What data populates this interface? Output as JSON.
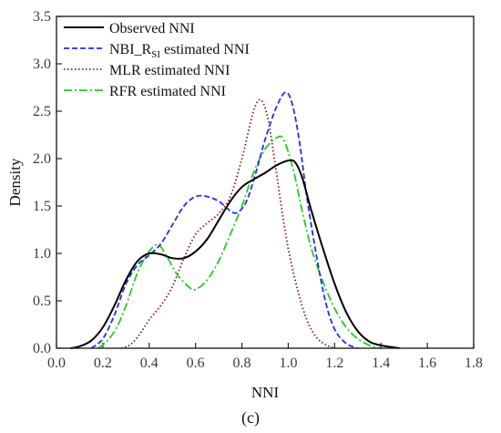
{
  "chart_data": {
    "type": "line",
    "xlabel": "NNI",
    "ylabel": "Density",
    "xlim": [
      0.0,
      1.8
    ],
    "ylim": [
      0.0,
      3.5
    ],
    "xticks": [
      "0.0",
      "0.2",
      "0.4",
      "0.6",
      "0.8",
      "1.0",
      "1.2",
      "1.4",
      "1.6",
      "1.8"
    ],
    "yticks": [
      "0.0",
      "0.5",
      "1.0",
      "1.5",
      "2.0",
      "2.5",
      "3.0",
      "3.5"
    ],
    "caption": "(c)",
    "legend_position": "top-left",
    "grid": false,
    "series": [
      {
        "name": "Observed NNI",
        "color": "#000000",
        "style": "solid",
        "points": [
          [
            0.06,
            0.0
          ],
          [
            0.1,
            0.02
          ],
          [
            0.15,
            0.08
          ],
          [
            0.2,
            0.22
          ],
          [
            0.25,
            0.45
          ],
          [
            0.3,
            0.72
          ],
          [
            0.35,
            0.92
          ],
          [
            0.4,
            1.0
          ],
          [
            0.45,
            0.99
          ],
          [
            0.5,
            0.95
          ],
          [
            0.55,
            0.95
          ],
          [
            0.6,
            1.02
          ],
          [
            0.65,
            1.15
          ],
          [
            0.7,
            1.35
          ],
          [
            0.75,
            1.55
          ],
          [
            0.8,
            1.7
          ],
          [
            0.85,
            1.78
          ],
          [
            0.9,
            1.85
          ],
          [
            0.95,
            1.93
          ],
          [
            1.0,
            1.98
          ],
          [
            1.03,
            1.96
          ],
          [
            1.06,
            1.8
          ],
          [
            1.1,
            1.45
          ],
          [
            1.15,
            1.05
          ],
          [
            1.2,
            0.68
          ],
          [
            1.25,
            0.38
          ],
          [
            1.3,
            0.18
          ],
          [
            1.35,
            0.07
          ],
          [
            1.4,
            0.03
          ],
          [
            1.48,
            0.0
          ]
        ]
      },
      {
        "name": "NBI_RSI estimated NNI",
        "name_main": "NBI_R",
        "name_sub": "SI",
        "name_rest": " estimated NNI",
        "color": "#1f2ff0",
        "style": "dashed",
        "points": [
          [
            0.15,
            0.0
          ],
          [
            0.2,
            0.1
          ],
          [
            0.25,
            0.35
          ],
          [
            0.3,
            0.68
          ],
          [
            0.35,
            0.88
          ],
          [
            0.4,
            0.98
          ],
          [
            0.45,
            1.1
          ],
          [
            0.5,
            1.3
          ],
          [
            0.55,
            1.5
          ],
          [
            0.6,
            1.6
          ],
          [
            0.65,
            1.6
          ],
          [
            0.7,
            1.55
          ],
          [
            0.75,
            1.45
          ],
          [
            0.78,
            1.43
          ],
          [
            0.82,
            1.55
          ],
          [
            0.86,
            1.85
          ],
          [
            0.9,
            2.2
          ],
          [
            0.95,
            2.55
          ],
          [
            0.99,
            2.7
          ],
          [
            1.02,
            2.55
          ],
          [
            1.05,
            2.15
          ],
          [
            1.08,
            1.6
          ],
          [
            1.12,
            1.0
          ],
          [
            1.16,
            0.5
          ],
          [
            1.2,
            0.2
          ],
          [
            1.25,
            0.05
          ],
          [
            1.3,
            0.0
          ]
        ]
      },
      {
        "name": "MLR estimated NNI",
        "color": "#8b1a1a",
        "style": "dotted",
        "points": [
          [
            0.28,
            0.0
          ],
          [
            0.32,
            0.04
          ],
          [
            0.36,
            0.15
          ],
          [
            0.4,
            0.3
          ],
          [
            0.45,
            0.45
          ],
          [
            0.5,
            0.65
          ],
          [
            0.55,
            0.95
          ],
          [
            0.6,
            1.2
          ],
          [
            0.65,
            1.32
          ],
          [
            0.7,
            1.42
          ],
          [
            0.75,
            1.6
          ],
          [
            0.8,
            2.0
          ],
          [
            0.85,
            2.5
          ],
          [
            0.88,
            2.62
          ],
          [
            0.91,
            2.45
          ],
          [
            0.94,
            2.0
          ],
          [
            0.97,
            1.5
          ],
          [
            1.0,
            1.05
          ],
          [
            1.04,
            0.62
          ],
          [
            1.08,
            0.3
          ],
          [
            1.12,
            0.12
          ],
          [
            1.16,
            0.04
          ],
          [
            1.2,
            0.0
          ]
        ]
      },
      {
        "name": "RFR estimated NNI",
        "color": "#22cc22",
        "style": "dashdot",
        "points": [
          [
            0.18,
            0.0
          ],
          [
            0.22,
            0.08
          ],
          [
            0.26,
            0.22
          ],
          [
            0.3,
            0.45
          ],
          [
            0.35,
            0.8
          ],
          [
            0.4,
            1.02
          ],
          [
            0.44,
            1.09
          ],
          [
            0.48,
            0.95
          ],
          [
            0.52,
            0.78
          ],
          [
            0.57,
            0.65
          ],
          [
            0.6,
            0.62
          ],
          [
            0.65,
            0.72
          ],
          [
            0.7,
            0.92
          ],
          [
            0.75,
            1.2
          ],
          [
            0.8,
            1.5
          ],
          [
            0.85,
            1.85
          ],
          [
            0.9,
            2.1
          ],
          [
            0.95,
            2.22
          ],
          [
            0.98,
            2.2
          ],
          [
            1.02,
            1.9
          ],
          [
            1.06,
            1.45
          ],
          [
            1.1,
            1.05
          ],
          [
            1.15,
            0.7
          ],
          [
            1.2,
            0.42
          ],
          [
            1.25,
            0.22
          ],
          [
            1.3,
            0.1
          ],
          [
            1.36,
            0.02
          ],
          [
            1.4,
            0.0
          ]
        ]
      }
    ]
  }
}
